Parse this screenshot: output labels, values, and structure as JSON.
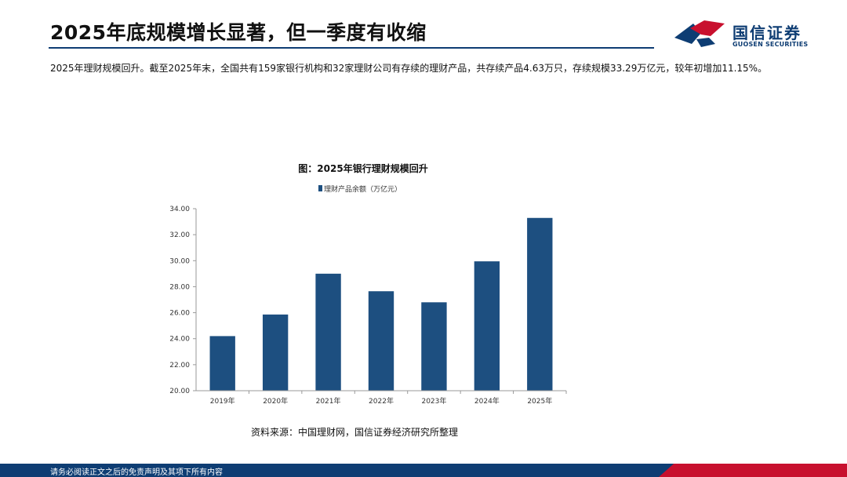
{
  "header": {
    "title": "2025年底规模增长显著，但一季度有收缩"
  },
  "brand": {
    "name_cn": "国信证券",
    "name_en": "GUOSEN SECURITIES",
    "primary_color": "#0e3d73",
    "accent_color": "#c8102e"
  },
  "summary": {
    "text": "2025年理财规模回升。截至2025年末，全国共有159家银行机构和32家理财公司有存续的理财产品，共存续产品4.63万只，存续规模33.29万亿元，较年初增加11.15%。"
  },
  "figure": {
    "title": "图：2025年银行理财规模回升",
    "source": "资料来源：中国理财网，国信证券经济研究所整理"
  },
  "chart_data": {
    "type": "bar",
    "categories": [
      "2019年",
      "2020年",
      "2021年",
      "2022年",
      "2023年",
      "2024年",
      "2025年"
    ],
    "series": [
      {
        "name": "理财产品余额（万亿元）",
        "values": [
          24.2,
          25.86,
          29.0,
          27.65,
          26.8,
          29.95,
          33.29
        ]
      }
    ],
    "ylim": [
      20,
      34
    ],
    "yticks": [
      "20.00",
      "22.00",
      "24.00",
      "26.00",
      "28.00",
      "30.00",
      "32.00",
      "34.00"
    ],
    "legend_position": "top-center",
    "grid": false,
    "bar_color": "#1d4f80"
  },
  "footer": {
    "disclaimer": "请务必阅读正文之后的免责声明及其项下所有内容"
  }
}
